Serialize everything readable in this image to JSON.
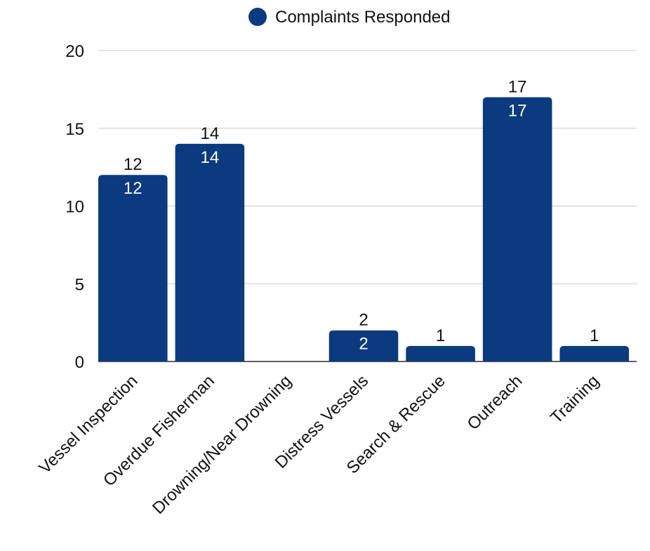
{
  "chart_data": {
    "type": "bar",
    "categories": [
      "Vessel Inspection",
      "Overdue Fisherman",
      "Drowning/Near Drowning",
      "Distress Vessels",
      "Search & Rescue",
      "Outreach",
      "Training"
    ],
    "series": [
      {
        "name": "Complaints Responded",
        "values": [
          12,
          14,
          0,
          2,
          1,
          17,
          1
        ],
        "color": "#0b3a7e"
      }
    ],
    "data_labels_above": [
      "12",
      "14",
      "",
      "2",
      "1",
      "17",
      "1"
    ],
    "data_labels_inside": [
      "12",
      "14",
      "",
      "2",
      "",
      "17",
      ""
    ],
    "yticks": [
      "0",
      "5",
      "10",
      "15",
      "20"
    ],
    "ylim": [
      0,
      20
    ],
    "grid": true,
    "legend_position": "top"
  }
}
